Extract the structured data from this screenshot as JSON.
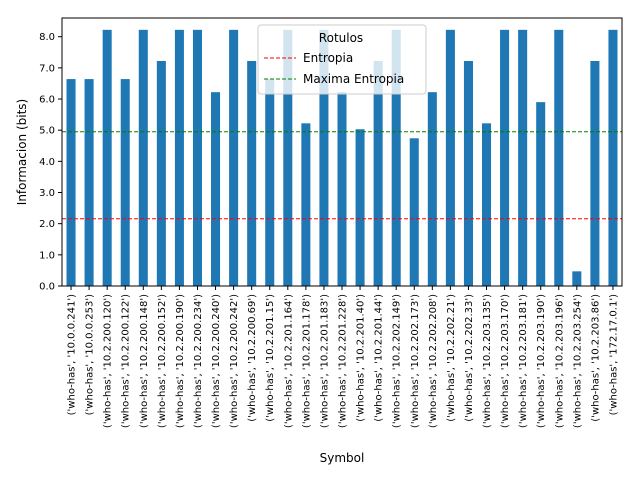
{
  "chart_data": {
    "type": "bar",
    "xlabel": "Symbol",
    "ylabel": "Informacion (bits)",
    "ylim": [
      0,
      8.6
    ],
    "yticks": [
      0.0,
      1.0,
      2.0,
      3.0,
      4.0,
      5.0,
      6.0,
      7.0,
      8.0
    ],
    "ytick_labels": [
      "0.0",
      "1.0",
      "2.0",
      "3.0",
      "4.0",
      "5.0",
      "6.0",
      "7.0",
      "8.0"
    ],
    "grid": false,
    "bar_color": "#1f77b4",
    "categories": [
      "('who-has', '10.0.0.241')",
      "('who-has', '10.0.0.253')",
      "('who-has', '10.2.200.120')",
      "('who-has', '10.2.200.122')",
      "('who-has', '10.2.200.148')",
      "('who-has', '10.2.200.152')",
      "('who-has', '10.2.200.190')",
      "('who-has', '10.2.200.234')",
      "('who-has', '10.2.200.240')",
      "('who-has', '10.2.200.242')",
      "('who-has', '10.2.200.69')",
      "('who-has', '10.2.201.15')",
      "('who-has', '10.2.201.164')",
      "('who-has', '10.2.201.178')",
      "('who-has', '10.2.201.183')",
      "('who-has', '10.2.201.228')",
      "('who-has', '10.2.201.40')",
      "('who-has', '10.2.201.44')",
      "('who-has', '10.2.202.149')",
      "('who-has', '10.2.202.173')",
      "('who-has', '10.2.202.208')",
      "('who-has', '10.2.202.21')",
      "('who-has', '10.2.202.33')",
      "('who-has', '10.2.203.135')",
      "('who-has', '10.2.203.170')",
      "('who-has', '10.2.203.181')",
      "('who-has', '10.2.203.190')",
      "('who-has', '10.2.203.196')",
      "('who-has', '10.2.203.254')",
      "('who-has', '10.2.203.86')",
      "('who-has', '172.17.0.1')"
    ],
    "values": [
      6.64,
      6.64,
      8.22,
      6.64,
      8.22,
      7.22,
      8.22,
      8.22,
      6.22,
      8.22,
      7.22,
      6.64,
      8.22,
      5.22,
      8.22,
      6.22,
      5.03,
      7.22,
      8.22,
      4.74,
      6.22,
      8.22,
      7.22,
      5.22,
      8.22,
      8.22,
      5.9,
      8.22,
      0.47,
      7.22,
      8.22
    ],
    "lines": [
      {
        "name": "Entropia",
        "y": 2.16,
        "color": "#ff0000",
        "style": "dashed"
      },
      {
        "name": "Maxima Entropia",
        "y": 4.95,
        "color": "#008000",
        "style": "dashed"
      }
    ],
    "legend": {
      "title": "Rotulos",
      "position": "upper center"
    }
  }
}
